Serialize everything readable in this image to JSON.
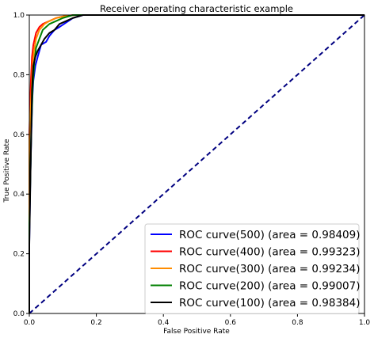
{
  "chart_data": {
    "type": "line",
    "title": "Receiver operating characteristic example",
    "xlabel": "False Positive Rate",
    "ylabel": "True Positive Rate",
    "xlim": [
      0.0,
      1.0
    ],
    "ylim": [
      0.0,
      1.0
    ],
    "xticks": [
      "0.0",
      "0.2",
      "0.4",
      "0.6",
      "0.8",
      "1.0"
    ],
    "yticks": [
      "0.0",
      "0.2",
      "0.4",
      "0.6",
      "0.8",
      "1.0"
    ],
    "grid": false,
    "legend_position": "lower-right",
    "series": [
      {
        "name": "ROC curve(500) (area = 0.98409)",
        "color": "#0000ff",
        "x": [
          0,
          0,
          0.003,
          0.006,
          0.009,
          0.012,
          0.018,
          0.025,
          0.03,
          0.035,
          0.05,
          0.06,
          0.075,
          0.09,
          0.11,
          0.13,
          0.16,
          1.0
        ],
        "y": [
          0,
          0.24,
          0.45,
          0.6,
          0.72,
          0.78,
          0.83,
          0.86,
          0.88,
          0.9,
          0.91,
          0.93,
          0.95,
          0.96,
          0.975,
          0.99,
          1.0,
          1.0
        ]
      },
      {
        "name": "ROC curve(400) (area = 0.99323)",
        "color": "#ff0000",
        "x": [
          0,
          0,
          0.003,
          0.005,
          0.008,
          0.012,
          0.016,
          0.02,
          0.03,
          0.04,
          0.06,
          0.08,
          0.1,
          0.13,
          1.0
        ],
        "y": [
          0,
          0.6,
          0.72,
          0.79,
          0.86,
          0.9,
          0.92,
          0.94,
          0.96,
          0.97,
          0.98,
          0.99,
          0.995,
          1.0,
          1.0
        ]
      },
      {
        "name": "ROC curve(300) (area = 0.99234)",
        "color": "#ff8c00",
        "x": [
          0,
          0,
          0.004,
          0.007,
          0.01,
          0.014,
          0.02,
          0.03,
          0.045,
          0.06,
          0.08,
          0.1,
          0.12,
          0.14,
          1.0
        ],
        "y": [
          0,
          0.58,
          0.68,
          0.76,
          0.83,
          0.88,
          0.92,
          0.95,
          0.97,
          0.98,
          0.99,
          0.995,
          0.998,
          1.0,
          1.0
        ]
      },
      {
        "name": "ROC curve(200) (area = 0.99007)",
        "color": "#008000",
        "x": [
          0,
          0,
          0.003,
          0.006,
          0.01,
          0.015,
          0.02,
          0.03,
          0.04,
          0.06,
          0.08,
          0.1,
          0.13,
          1.0
        ],
        "y": [
          0,
          0.3,
          0.45,
          0.62,
          0.76,
          0.84,
          0.89,
          0.92,
          0.95,
          0.97,
          0.98,
          0.99,
          1.0,
          1.0
        ]
      },
      {
        "name": "ROC curve(100) (area = 0.98384)",
        "color": "#000000",
        "x": [
          0,
          0,
          0.004,
          0.008,
          0.012,
          0.018,
          0.025,
          0.035,
          0.045,
          0.06,
          0.075,
          0.09,
          0.11,
          0.13,
          0.16,
          1.0
        ],
        "y": [
          0,
          0.23,
          0.5,
          0.75,
          0.83,
          0.86,
          0.88,
          0.9,
          0.92,
          0.94,
          0.95,
          0.97,
          0.98,
          0.99,
          1.0,
          1.0
        ]
      }
    ],
    "reference_line": {
      "x": [
        0,
        1
      ],
      "y": [
        0,
        1
      ],
      "color": "#000080",
      "style": "dashed"
    }
  }
}
